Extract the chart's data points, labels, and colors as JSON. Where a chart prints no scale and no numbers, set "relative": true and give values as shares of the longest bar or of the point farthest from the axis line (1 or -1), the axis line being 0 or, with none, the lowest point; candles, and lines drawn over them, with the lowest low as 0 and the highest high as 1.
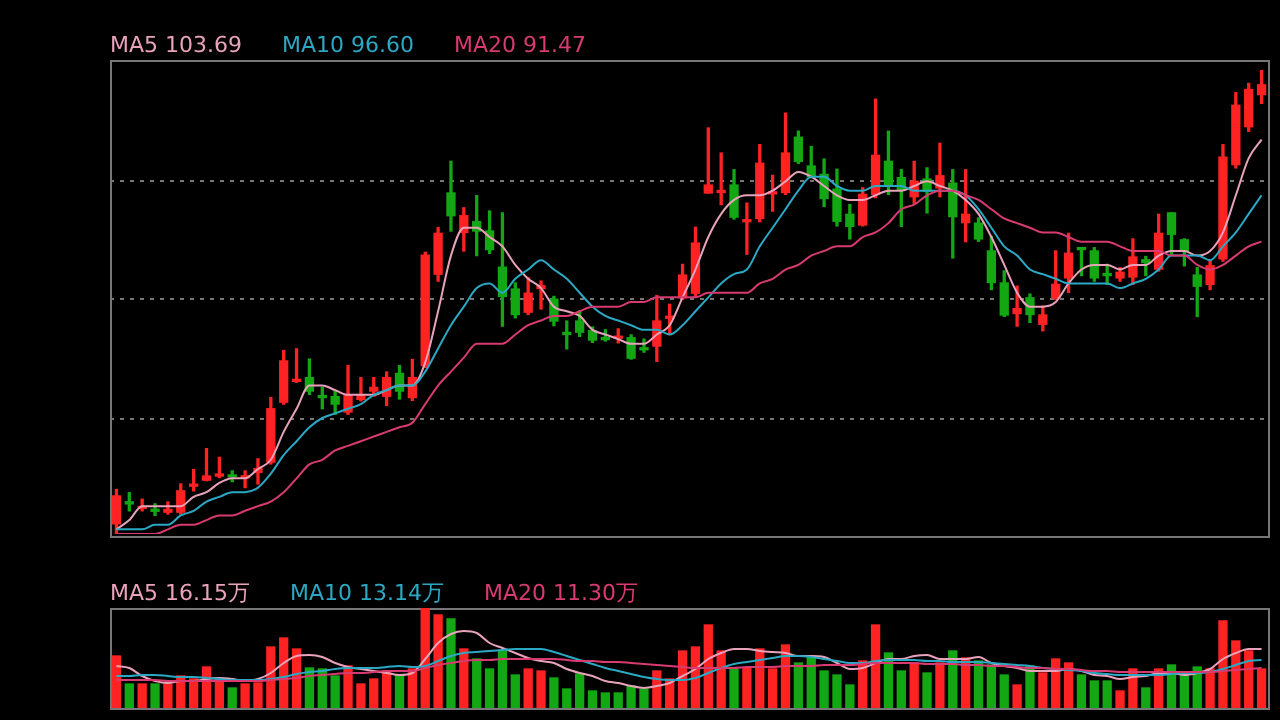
{
  "chart_data": [
    {
      "type": "candlestick",
      "relative": true,
      "grid": true,
      "legend": "top left",
      "categories": [
        null,
        null,
        null,
        null,
        null,
        null,
        null,
        null,
        null,
        null,
        null,
        null,
        null,
        null,
        null,
        null,
        null,
        null,
        null,
        null,
        null,
        null,
        null,
        null,
        null,
        null,
        null,
        null,
        null,
        null,
        null,
        null,
        null,
        null,
        null,
        null,
        null,
        null,
        null,
        null,
        null,
        null,
        null,
        null,
        null,
        null,
        null,
        null,
        null,
        null,
        null,
        null,
        null,
        null,
        null,
        null,
        null,
        null,
        null,
        null,
        null,
        null,
        null,
        null,
        null,
        null,
        null,
        null,
        null,
        null,
        null,
        null,
        null,
        null,
        null,
        null,
        null,
        null,
        null,
        null,
        null,
        null,
        null,
        null,
        null,
        null,
        null,
        null,
        null,
        null
      ],
      "ohlc": [
        [
          0.022,
          0.096,
          0,
          0.082
        ],
        [
          0.067,
          0.089,
          0.05,
          0.065
        ],
        [
          0.055,
          0.075,
          0.05,
          0.057
        ],
        [
          0.052,
          0.065,
          0.04,
          0.049
        ],
        [
          0.047,
          0.069,
          0.043,
          0.053
        ],
        [
          0.047,
          0.108,
          0.043,
          0.093
        ],
        [
          0.103,
          0.139,
          0.093,
          0.106
        ],
        [
          0.116,
          0.184,
          0.115,
          0.125
        ],
        [
          0.125,
          0.165,
          0.122,
          0.128
        ],
        [
          0.126,
          0.136,
          0.113,
          0.123
        ],
        [
          0.121,
          0.136,
          0.1,
          0.125
        ],
        [
          0.133,
          0.162,
          0.108,
          0.141
        ],
        [
          0.155,
          0.294,
          0.151,
          0.27
        ],
        [
          0.284,
          0.395,
          0.28,
          0.373
        ],
        [
          0.329,
          0.399,
          0.327,
          0.331
        ],
        [
          0.337,
          0.377,
          0.301,
          0.308
        ],
        [
          0.298,
          0.316,
          0.27,
          0.294
        ],
        [
          0.296,
          0.308,
          0.258,
          0.28
        ],
        [
          0.263,
          0.363,
          0.258,
          0.298
        ],
        [
          0.29,
          0.337,
          0.287,
          0.298
        ],
        [
          0.308,
          0.337,
          0.297,
          0.316
        ],
        [
          0.297,
          0.349,
          0.277,
          0.337
        ],
        [
          0.346,
          0.363,
          0.291,
          0.308
        ],
        [
          0.294,
          0.376,
          0.288,
          0.337
        ],
        [
          0.363,
          0.607,
          0.359,
          0.601
        ],
        [
          0.56,
          0.66,
          0.545,
          0.648
        ],
        [
          0.735,
          0.803,
          0.653,
          0.686
        ],
        [
          0.65,
          0.703,
          0.61,
          0.686
        ],
        [
          0.673,
          0.729,
          0.6,
          0.653
        ],
        [
          0.653,
          0.696,
          0.605,
          0.613
        ],
        [
          0.575,
          0.692,
          0.448,
          0.512
        ],
        [
          0.528,
          0.541,
          0.466,
          0.473
        ],
        [
          0.478,
          0.552,
          0.473,
          0.519
        ],
        [
          0.529,
          0.545,
          0.485,
          0.535
        ],
        [
          0.506,
          0.512,
          0.449,
          0.459
        ],
        [
          0.433,
          0.459,
          0.399,
          0.43
        ],
        [
          0.459,
          0.481,
          0.426,
          0.435
        ],
        [
          0.438,
          0.446,
          0.413,
          0.418
        ],
        [
          0.422,
          0.44,
          0.416,
          0.419
        ],
        [
          0.422,
          0.442,
          0.412,
          0.425
        ],
        [
          0.423,
          0.429,
          0.377,
          0.379
        ],
        [
          0.4,
          0.42,
          0.392,
          0.397
        ],
        [
          0.405,
          0.514,
          0.372,
          0.459
        ],
        [
          0.465,
          0.495,
          0.43,
          0.468
        ],
        [
          0.509,
          0.581,
          0.506,
          0.558
        ],
        [
          0.519,
          0.661,
          0.512,
          0.627
        ],
        [
          0.735,
          0.875,
          0.735,
          0.752
        ],
        [
          0.736,
          0.821,
          0.71,
          0.739
        ],
        [
          0.752,
          0.785,
          0.679,
          0.683
        ],
        [
          0.673,
          0.713,
          0.603,
          0.676
        ],
        [
          0.68,
          0.839,
          0.673,
          0.799
        ],
        [
          0.733,
          0.773,
          0.696,
          0.736
        ],
        [
          0.736,
          0.907,
          0.732,
          0.821
        ],
        [
          0.855,
          0.868,
          0.799,
          0.803
        ],
        [
          0.793,
          0.835,
          0.768,
          0.77
        ],
        [
          0.775,
          0.808,
          0.706,
          0.723
        ],
        [
          0.743,
          0.786,
          0.664,
          0.674
        ],
        [
          0.689,
          0.71,
          0.636,
          0.663
        ],
        [
          0.666,
          0.746,
          0.664,
          0.732
        ],
        [
          0.732,
          0.937,
          0.725,
          0.816
        ],
        [
          0.803,
          0.868,
          0.732,
          0.753
        ],
        [
          0.768,
          0.785,
          0.663,
          0.742
        ],
        [
          0.727,
          0.803,
          0.713,
          0.76
        ],
        [
          0.765,
          0.789,
          0.692,
          0.739
        ],
        [
          0.746,
          0.842,
          0.727,
          0.772
        ],
        [
          0.756,
          0.785,
          0.595,
          0.684
        ],
        [
          0.671,
          0.785,
          0.63,
          0.689
        ],
        [
          0.67,
          0.681,
          0.631,
          0.636
        ],
        [
          0.61,
          0.641,
          0.527,
          0.542
        ],
        [
          0.541,
          0.567,
          0.469,
          0.472
        ],
        [
          0.475,
          0.534,
          0.448,
          0.486
        ],
        [
          0.509,
          0.517,
          0.456,
          0.473
        ],
        [
          0.452,
          0.491,
          0.438,
          0.472
        ],
        [
          0.509,
          0.61,
          0.506,
          0.538
        ],
        [
          0.552,
          0.648,
          0.521,
          0.605
        ],
        [
          0.615,
          0.617,
          0.557,
          0.613
        ],
        [
          0.61,
          0.617,
          0.545,
          0.552
        ],
        [
          0.561,
          0.581,
          0.538,
          0.557
        ],
        [
          0.552,
          0.574,
          0.545,
          0.564
        ],
        [
          0.554,
          0.636,
          0.538,
          0.597
        ],
        [
          0.591,
          0.598,
          0.557,
          0.585
        ],
        [
          0.571,
          0.689,
          0.567,
          0.648
        ],
        [
          0.692,
          0.692,
          0.603,
          0.646
        ],
        [
          0.634,
          0.636,
          0.578,
          0.61
        ],
        [
          0.558,
          0.574,
          0.469,
          0.534
        ],
        [
          0.538,
          0.59,
          0.527,
          0.578
        ],
        [
          0.593,
          0.839,
          0.588,
          0.812
        ],
        [
          0.796,
          0.951,
          0.789,
          0.924
        ],
        [
          0.878,
          0.971,
          0.868,
          0.958
        ],
        [
          0.947,
          1,
          0.928,
          0.968
        ]
      ],
      "colors": [
        "#ff2222",
        "#13a813",
        "#ff2222",
        "#13a813",
        "#ff2222",
        "#ff2222",
        "#ff2222",
        "#ff2222",
        "#ff2222",
        "#13a813",
        "#ff2222",
        "#ff2222",
        "#ff2222",
        "#ff2222",
        "#ff2222",
        "#13a813",
        "#13a813",
        "#13a813",
        "#ff2222",
        "#ff2222",
        "#ff2222",
        "#ff2222",
        "#13a813",
        "#ff2222",
        "#ff2222",
        "#ff2222",
        "#13a813",
        "#ff2222",
        "#13a813",
        "#13a813",
        "#13a813",
        "#13a813",
        "#ff2222",
        "#ff2222",
        "#13a813",
        "#13a813",
        "#13a813",
        "#13a813",
        "#13a813",
        "#ff2222",
        "#13a813",
        "#13a813",
        "#ff2222",
        "#ff2222",
        "#ff2222",
        "#ff2222",
        "#ff2222",
        "#ff2222",
        "#13a813",
        "#ff2222",
        "#ff2222",
        "#ff2222",
        "#ff2222",
        "#13a813",
        "#13a813",
        "#13a813",
        "#13a813",
        "#13a813",
        "#ff2222",
        "#ff2222",
        "#13a813",
        "#13a813",
        "#ff2222",
        "#13a813",
        "#ff2222",
        "#13a813",
        "#ff2222",
        "#13a813",
        "#13a813",
        "#13a813",
        "#ff2222",
        "#13a813",
        "#ff2222",
        "#ff2222",
        "#ff2222",
        "#13a813",
        "#13a813",
        "#13a813",
        "#ff2222",
        "#ff2222",
        "#13a813",
        "#ff2222",
        "#13a813",
        "#13a813",
        "#13a813",
        "#ff2222",
        "#ff2222",
        "#ff2222",
        "#ff2222",
        "#ff2222"
      ],
      "series": [
        {
          "type": "line",
          "name": "MA5 103.69",
          "color": "#e8a2bb",
          "values": [
            0.01,
            0.03,
            0.06,
            0.06,
            0.06,
            0.06,
            0.08,
            0.09,
            0.11,
            0.12,
            0.12,
            0.14,
            0.16,
            0.22,
            0.27,
            0.32,
            0.32,
            0.31,
            0.3,
            0.3,
            0.3,
            0.31,
            0.32,
            0.32,
            0.37,
            0.48,
            0.6,
            0.66,
            0.66,
            0.64,
            0.62,
            0.58,
            0.55,
            0.53,
            0.49,
            0.48,
            0.47,
            0.44,
            0.43,
            0.42,
            0.41,
            0.41,
            0.43,
            0.45,
            0.51,
            0.57,
            0.64,
            0.69,
            0.72,
            0.73,
            0.73,
            0.74,
            0.76,
            0.78,
            0.77,
            0.75,
            0.73,
            0.72,
            0.72,
            0.73,
            0.74,
            0.74,
            0.75,
            0.76,
            0.75,
            0.74,
            0.72,
            0.69,
            0.64,
            0.58,
            0.52,
            0.49,
            0.49,
            0.5,
            0.54,
            0.57,
            0.58,
            0.58,
            0.57,
            0.58,
            0.58,
            0.6,
            0.61,
            0.61,
            0.6,
            0.61,
            0.65,
            0.73,
            0.81,
            0.85
          ]
        },
        {
          "type": "line",
          "name": "MA10 96.60",
          "color": "#2ba8c4",
          "values": [
            0.01,
            0.01,
            0.01,
            0.02,
            0.02,
            0.04,
            0.05,
            0.07,
            0.08,
            0.09,
            0.09,
            0.1,
            0.13,
            0.17,
            0.2,
            0.23,
            0.25,
            0.26,
            0.27,
            0.28,
            0.3,
            0.31,
            0.32,
            0.32,
            0.35,
            0.4,
            0.45,
            0.49,
            0.53,
            0.54,
            0.52,
            0.55,
            0.57,
            0.59,
            0.57,
            0.55,
            0.52,
            0.49,
            0.47,
            0.46,
            0.45,
            0.44,
            0.44,
            0.43,
            0.45,
            0.48,
            0.51,
            0.54,
            0.56,
            0.57,
            0.62,
            0.66,
            0.7,
            0.74,
            0.77,
            0.77,
            0.75,
            0.74,
            0.74,
            0.75,
            0.75,
            0.75,
            0.74,
            0.74,
            0.74,
            0.74,
            0.73,
            0.7,
            0.66,
            0.62,
            0.6,
            0.57,
            0.56,
            0.55,
            0.54,
            0.54,
            0.54,
            0.54,
            0.53,
            0.54,
            0.55,
            0.57,
            0.6,
            0.6,
            0.6,
            0.59,
            0.62,
            0.65,
            0.69,
            0.73
          ]
        },
        {
          "type": "line",
          "name": "MA20 91.47",
          "color": "#d83a72",
          "values": [
            0,
            0,
            0,
            0,
            0.01,
            0.02,
            0.02,
            0.03,
            0.04,
            0.04,
            0.05,
            0.06,
            0.07,
            0.09,
            0.12,
            0.15,
            0.16,
            0.18,
            0.19,
            0.2,
            0.21,
            0.22,
            0.23,
            0.24,
            0.28,
            0.32,
            0.35,
            0.38,
            0.41,
            0.41,
            0.41,
            0.43,
            0.45,
            0.46,
            0.47,
            0.47,
            0.48,
            0.49,
            0.49,
            0.49,
            0.5,
            0.5,
            0.51,
            0.51,
            0.51,
            0.51,
            0.52,
            0.52,
            0.52,
            0.52,
            0.54,
            0.55,
            0.57,
            0.58,
            0.6,
            0.61,
            0.62,
            0.62,
            0.64,
            0.65,
            0.67,
            0.7,
            0.71,
            0.73,
            0.74,
            0.74,
            0.73,
            0.72,
            0.7,
            0.68,
            0.67,
            0.66,
            0.65,
            0.65,
            0.64,
            0.63,
            0.63,
            0.63,
            0.62,
            0.61,
            0.61,
            0.61,
            0.6,
            0.6,
            0.58,
            0.57,
            0.58,
            0.6,
            0.62,
            0.63
          ]
        }
      ]
    },
    {
      "type": "bar",
      "relative": true,
      "legend": "top left",
      "categories": [
        null,
        null,
        null,
        null,
        null,
        null,
        null,
        null,
        null,
        null,
        null,
        null,
        null,
        null,
        null,
        null,
        null,
        null,
        null,
        null,
        null,
        null,
        null,
        null,
        null,
        null,
        null,
        null,
        null,
        null,
        null,
        null,
        null,
        null,
        null,
        null,
        null,
        null,
        null,
        null,
        null,
        null,
        null,
        null,
        null,
        null,
        null,
        null,
        null,
        null,
        null,
        null,
        null,
        null,
        null,
        null,
        null,
        null,
        null,
        null,
        null,
        null,
        null,
        null,
        null,
        null,
        null,
        null,
        null,
        null,
        null,
        null,
        null,
        null,
        null,
        null,
        null,
        null,
        null,
        null,
        null,
        null,
        null,
        null,
        null,
        null,
        null,
        null,
        null,
        null
      ],
      "series": [
        {
          "type": "bar",
          "colors": [
            "#ff2222",
            "#13a813",
            "#ff2222",
            "#13a813",
            "#ff2222",
            "#ff2222",
            "#ff2222",
            "#ff2222",
            "#ff2222",
            "#13a813",
            "#ff2222",
            "#ff2222",
            "#ff2222",
            "#ff2222",
            "#ff2222",
            "#13a813",
            "#13a813",
            "#13a813",
            "#ff2222",
            "#ff2222",
            "#ff2222",
            "#ff2222",
            "#13a813",
            "#ff2222",
            "#ff2222",
            "#ff2222",
            "#13a813",
            "#ff2222",
            "#13a813",
            "#13a813",
            "#13a813",
            "#13a813",
            "#ff2222",
            "#ff2222",
            "#13a813",
            "#13a813",
            "#13a813",
            "#13a813",
            "#13a813",
            "#13a813",
            "#13a813",
            "#13a813",
            "#ff2222",
            "#ff2222",
            "#ff2222",
            "#ff2222",
            "#ff2222",
            "#ff2222",
            "#13a813",
            "#ff2222",
            "#ff2222",
            "#ff2222",
            "#ff2222",
            "#13a813",
            "#13a813",
            "#13a813",
            "#13a813",
            "#13a813",
            "#ff2222",
            "#ff2222",
            "#13a813",
            "#13a813",
            "#ff2222",
            "#13a813",
            "#ff2222",
            "#13a813",
            "#ff2222",
            "#13a813",
            "#13a813",
            "#13a813",
            "#ff2222",
            "#13a813",
            "#ff2222",
            "#ff2222",
            "#ff2222",
            "#13a813",
            "#13a813",
            "#13a813",
            "#ff2222",
            "#ff2222",
            "#13a813",
            "#ff2222",
            "#13a813",
            "#13a813",
            "#13a813",
            "#ff2222",
            "#ff2222",
            "#ff2222",
            "#ff2222",
            "#ff2222"
          ],
          "values": [
            0.52,
            0.24,
            0.24,
            0.24,
            0.24,
            0.32,
            0.29,
            0.41,
            0.29,
            0.2,
            0.24,
            0.25,
            0.61,
            0.7,
            0.59,
            0.4,
            0.39,
            0.32,
            0.42,
            0.24,
            0.29,
            0.37,
            0.33,
            0.39,
            1,
            0.93,
            0.89,
            0.59,
            0.49,
            0.39,
            0.57,
            0.33,
            0.39,
            0.37,
            0.3,
            0.19,
            0.34,
            0.17,
            0.15,
            0.15,
            0.22,
            0.19,
            0.37,
            0.29,
            0.57,
            0.61,
            0.83,
            0.57,
            0.39,
            0.4,
            0.59,
            0.39,
            0.63,
            0.45,
            0.52,
            0.37,
            0.33,
            0.23,
            0.47,
            0.83,
            0.55,
            0.37,
            0.45,
            0.35,
            0.45,
            0.57,
            0.5,
            0.47,
            0.43,
            0.33,
            0.23,
            0.42,
            0.35,
            0.49,
            0.45,
            0.33,
            0.27,
            0.27,
            0.17,
            0.39,
            0.2,
            0.39,
            0.43,
            0.32,
            0.41,
            0.39,
            0.87,
            0.67,
            0.57,
            0.39
          ]
        },
        {
          "type": "line",
          "name": "MA5 16.15万",
          "color": "#e8a2bb",
          "values": [
            0.42,
            0.4,
            0.32,
            0.27,
            0.25,
            0.27,
            0.27,
            0.29,
            0.3,
            0.29,
            0.27,
            0.29,
            0.35,
            0.45,
            0.52,
            0.53,
            0.51,
            0.45,
            0.41,
            0.39,
            0.37,
            0.35,
            0.33,
            0.35,
            0.49,
            0.65,
            0.74,
            0.77,
            0.75,
            0.65,
            0.6,
            0.55,
            0.5,
            0.47,
            0.45,
            0.39,
            0.35,
            0.32,
            0.27,
            0.25,
            0.22,
            0.2,
            0.22,
            0.25,
            0.32,
            0.39,
            0.49,
            0.55,
            0.59,
            0.59,
            0.57,
            0.56,
            0.55,
            0.52,
            0.52,
            0.51,
            0.45,
            0.39,
            0.4,
            0.45,
            0.49,
            0.49,
            0.52,
            0.53,
            0.49,
            0.49,
            0.49,
            0.51,
            0.45,
            0.42,
            0.4,
            0.37,
            0.37,
            0.37,
            0.39,
            0.37,
            0.33,
            0.32,
            0.29,
            0.31,
            0.32,
            0.35,
            0.35,
            0.33,
            0.35,
            0.39,
            0.49,
            0.55,
            0.59,
            0.59
          ]
        },
        {
          "type": "line",
          "name": "MA10 13.14万",
          "color": "#2ba8c4",
          "values": [
            0.32,
            0.32,
            0.33,
            0.33,
            0.32,
            0.31,
            0.31,
            0.3,
            0.29,
            0.28,
            0.28,
            0.28,
            0.29,
            0.31,
            0.34,
            0.36,
            0.37,
            0.39,
            0.4,
            0.4,
            0.4,
            0.41,
            0.42,
            0.41,
            0.42,
            0.47,
            0.52,
            0.55,
            0.56,
            0.57,
            0.58,
            0.59,
            0.59,
            0.59,
            0.56,
            0.52,
            0.48,
            0.44,
            0.4,
            0.37,
            0.34,
            0.31,
            0.29,
            0.28,
            0.28,
            0.3,
            0.35,
            0.4,
            0.44,
            0.46,
            0.48,
            0.5,
            0.52,
            0.52,
            0.51,
            0.49,
            0.47,
            0.45,
            0.45,
            0.47,
            0.48,
            0.48,
            0.48,
            0.47,
            0.47,
            0.46,
            0.46,
            0.46,
            0.45,
            0.44,
            0.43,
            0.42,
            0.4,
            0.39,
            0.38,
            0.37,
            0.35,
            0.34,
            0.33,
            0.33,
            0.33,
            0.33,
            0.34,
            0.35,
            0.35,
            0.36,
            0.39,
            0.43,
            0.47,
            0.48
          ]
        },
        {
          "type": "line",
          "name": "MA20 11.30万",
          "color": "#d83a72",
          "values": [
            0.28,
            0.28,
            0.28,
            0.28,
            0.27,
            0.27,
            0.27,
            0.27,
            0.27,
            0.27,
            0.27,
            0.27,
            0.28,
            0.29,
            0.3,
            0.32,
            0.33,
            0.34,
            0.35,
            0.35,
            0.36,
            0.37,
            0.37,
            0.37,
            0.4,
            0.43,
            0.45,
            0.47,
            0.48,
            0.48,
            0.49,
            0.49,
            0.49,
            0.49,
            0.49,
            0.48,
            0.47,
            0.47,
            0.46,
            0.46,
            0.45,
            0.44,
            0.43,
            0.42,
            0.41,
            0.4,
            0.4,
            0.4,
            0.4,
            0.41,
            0.41,
            0.41,
            0.42,
            0.42,
            0.42,
            0.43,
            0.43,
            0.43,
            0.44,
            0.45,
            0.45,
            0.45,
            0.45,
            0.44,
            0.44,
            0.44,
            0.43,
            0.43,
            0.42,
            0.42,
            0.41,
            0.4,
            0.4,
            0.39,
            0.39,
            0.38,
            0.37,
            0.37,
            0.36,
            0.36,
            0.36,
            0.36,
            0.36,
            0.36,
            0.36,
            0.36,
            0.37,
            0.38,
            0.39,
            0.4
          ]
        }
      ]
    }
  ]
}
